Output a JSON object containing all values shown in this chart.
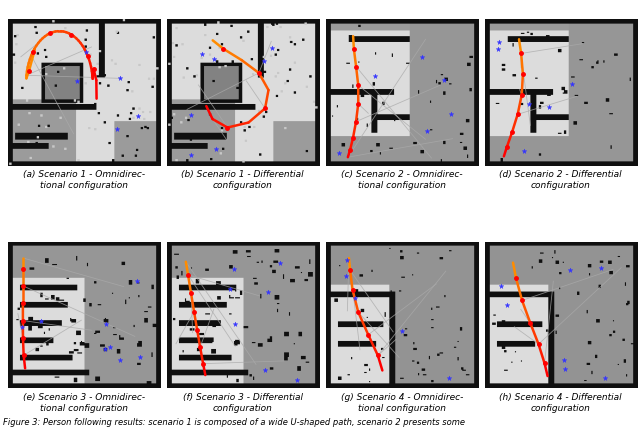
{
  "captions": [
    "(a) Scenario 1 - Omnidirec-\ntional configuration",
    "(b) Scenario 1 - Differential\nconfiguration",
    "(c) Scenario 2 - Omnidirec-\ntional configuration",
    "(d) Scenario 2 - Differential\nconfiguration",
    "(e) Scenario 3 - Omnidirec-\ntional configuration",
    "(f) Scenario 3 - Differential\nconfiguration",
    "(g) Scenario 4 - Omnidirec-\ntional configuration",
    "(h) Scenario 4 - Differential\nconfiguration"
  ],
  "footer": "Figure 3: Person following results: scenario 1 is composed of a wide U-shaped path, scenario 2 presents some",
  "nrows": 2,
  "ncols": 4,
  "fig_width": 6.4,
  "fig_height": 4.29,
  "dpi": 100,
  "caption_fontsize": 6.5,
  "footer_fontsize": 6.0,
  "bg_color": "#ffffff"
}
